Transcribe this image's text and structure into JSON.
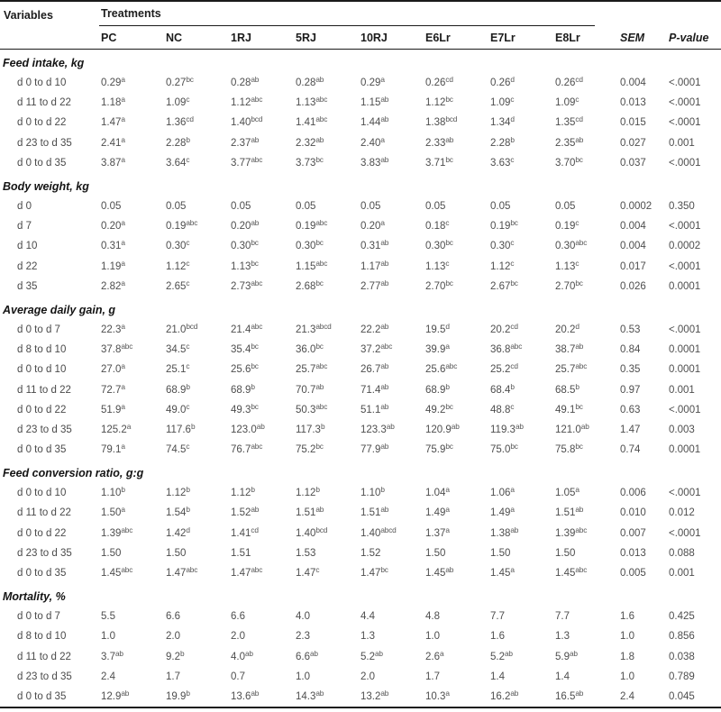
{
  "table": {
    "variables_label": "Variables",
    "treatments_label": "Treatments",
    "columns": [
      "PC",
      "NC",
      "1RJ",
      "5RJ",
      "10RJ",
      "E6Lr",
      "E7Lr",
      "E8Lr",
      "SEM",
      "P-value"
    ],
    "italic_columns": [
      "SEM",
      "P-value"
    ],
    "sections": [
      {
        "title": "Feed intake, kg",
        "rows": [
          {
            "label": "d 0 to d 10",
            "values": [
              "0.29^a",
              "0.27^bc",
              "0.28^ab",
              "0.28^ab",
              "0.29^a",
              "0.26^cd",
              "0.26^d",
              "0.26^cd",
              "0.004",
              "<.0001"
            ]
          },
          {
            "label": "d 11 to d 22",
            "values": [
              "1.18^a",
              "1.09^c",
              "1.12^abc",
              "1.13^abc",
              "1.15^ab",
              "1.12^bc",
              "1.09^c",
              "1.09^c",
              "0.013",
              "<.0001"
            ]
          },
          {
            "label": "d 0 to d 22",
            "values": [
              "1.47^a",
              "1.36^cd",
              "1.40^bcd",
              "1.41^abc",
              "1.44^ab",
              "1.38^bcd",
              "1.34^d",
              "1.35^cd",
              "0.015",
              "<.0001"
            ]
          },
          {
            "label": "d 23 to d 35",
            "values": [
              "2.41^a",
              "2.28^b",
              "2.37^ab",
              "2.32^ab",
              "2.40^a",
              "2.33^ab",
              "2.28^b",
              "2.35^ab",
              "0.027",
              "0.001"
            ]
          },
          {
            "label": "d 0 to d 35",
            "values": [
              "3.87^a",
              "3.64^c",
              "3.77^abc",
              "3.73^bc",
              "3.83^ab",
              "3.71^bc",
              "3.63^c",
              "3.70^bc",
              "0.037",
              "<.0001"
            ]
          }
        ]
      },
      {
        "title": "Body weight, kg",
        "rows": [
          {
            "label": "d 0",
            "values": [
              "0.05",
              "0.05",
              "0.05",
              "0.05",
              "0.05",
              "0.05",
              "0.05",
              "0.05",
              "0.0002",
              "0.350"
            ]
          },
          {
            "label": "d 7",
            "values": [
              "0.20^a",
              "0.19^abc",
              "0.20^ab",
              "0.19^abc",
              "0.20^a",
              "0.18^c",
              "0.19^bc",
              "0.19^c",
              "0.004",
              "<.0001"
            ]
          },
          {
            "label": "d 10",
            "values": [
              "0.31^a",
              "0.30^c",
              "0.30^bc",
              "0.30^bc",
              "0.31^ab",
              "0.30^bc",
              "0.30^c",
              "0.30^abc",
              "0.004",
              "0.0002"
            ]
          },
          {
            "label": "d 22",
            "values": [
              "1.19^a",
              "1.12^c",
              "1.13^bc",
              "1.15^abc",
              "1.17^ab",
              "1.13^c",
              "1.12^c",
              "1.13^c",
              "0.017",
              "<.0001"
            ]
          },
          {
            "label": "d 35",
            "values": [
              "2.82^a",
              "2.65^c",
              "2.73^abc",
              "2.68^bc",
              "2.77^ab",
              "2.70^bc",
              "2.67^bc",
              "2.70^bc",
              "0.026",
              "0.0001"
            ]
          }
        ]
      },
      {
        "title": "Average daily gain, g",
        "rows": [
          {
            "label": "d 0 to d 7",
            "values": [
              "22.3^a",
              "21.0^bcd",
              "21.4^abc",
              "21.3^abcd",
              "22.2^ab",
              "19.5^d",
              "20.2^cd",
              "20.2^d",
              "0.53",
              "<.0001"
            ]
          },
          {
            "label": "d 8 to d 10",
            "values": [
              "37.8^abc",
              "34.5^c",
              "35.4^bc",
              "36.0^bc",
              "37.2^abc",
              "39.9^a",
              "36.8^abc",
              "38.7^ab",
              "0.84",
              "0.0001"
            ]
          },
          {
            "label": "d 0 to d 10",
            "values": [
              "27.0^a",
              "25.1^c",
              "25.6^bc",
              "25.7^abc",
              "26.7^ab",
              "25.6^abc",
              "25.2^cd",
              "25.7^abc",
              "0.35",
              "0.0001"
            ]
          },
          {
            "label": "d 11 to d 22",
            "values": [
              "72.7^a",
              "68.9^b",
              "68.9^b",
              "70.7^ab",
              "71.4^ab",
              "68.9^b",
              "68.4^b",
              "68.5^b",
              "0.97",
              "0.001"
            ]
          },
          {
            "label": "d 0 to d 22",
            "values": [
              "51.9^a",
              "49.0^c",
              "49.3^bc",
              "50.3^abc",
              "51.1^ab",
              "49.2^bc",
              "48.8^c",
              "49.1^bc",
              "0.63",
              "<.0001"
            ]
          },
          {
            "label": "d 23 to d 35",
            "values": [
              "125.2^a",
              "117.6^b",
              "123.0^ab",
              "117.3^b",
              "123.3^ab",
              "120.9^ab",
              "119.3^ab",
              "121.0^ab",
              "1.47",
              "0.003"
            ]
          },
          {
            "label": "d 0 to d 35",
            "values": [
              "79.1^a",
              "74.5^c",
              "76.7^abc",
              "75.2^bc",
              "77.9^ab",
              "75.9^bc",
              "75.0^bc",
              "75.8^bc",
              "0.74",
              "0.0001"
            ]
          }
        ]
      },
      {
        "title": "Feed conversion ratio, g:g",
        "rows": [
          {
            "label": "d 0 to d 10",
            "values": [
              "1.10^b",
              "1.12^b",
              "1.12^b",
              "1.12^b",
              "1.10^b",
              "1.04^a",
              "1.06^a",
              "1.05^a",
              "0.006",
              "<.0001"
            ]
          },
          {
            "label": "d 11 to d 22",
            "values": [
              "1.50^a",
              "1.54^b",
              "1.52^ab",
              "1.51^ab",
              "1.51^ab",
              "1.49^a",
              "1.49^a",
              "1.51^ab",
              "0.010",
              "0.012"
            ]
          },
          {
            "label": "d 0 to d 22",
            "values": [
              "1.39^abc",
              "1.42^d",
              "1.41^cd",
              "1.40^bcd",
              "1.40^abcd",
              "1.37^a",
              "1.38^ab",
              "1.39^abc",
              "0.007",
              "<.0001"
            ]
          },
          {
            "label": "d 23 to d 35",
            "values": [
              "1.50",
              "1.50",
              "1.51",
              "1.53",
              "1.52",
              "1.50",
              "1.50",
              "1.50",
              "0.013",
              "0.088"
            ]
          },
          {
            "label": "d 0 to d 35",
            "values": [
              "1.45^abc",
              "1.47^abc",
              "1.47^abc",
              "1.47^c",
              "1.47^bc",
              "1.45^ab",
              "1.45^a",
              "1.45^abc",
              "0.005",
              "0.001"
            ]
          }
        ]
      },
      {
        "title": "Mortality, %",
        "rows": [
          {
            "label": "d 0 to d 7",
            "values": [
              "5.5",
              "6.6",
              "6.6",
              "4.0",
              "4.4",
              "4.8",
              "7.7",
              "7.7",
              "1.6",
              "0.425"
            ]
          },
          {
            "label": "d 8 to d 10",
            "values": [
              "1.0",
              "2.0",
              "2.0",
              "2.3",
              "1.3",
              "1.0",
              "1.6",
              "1.3",
              "1.0",
              "0.856"
            ]
          },
          {
            "label": "d 11 to d 22",
            "values": [
              "3.7^ab",
              "9.2^b",
              "4.0^ab",
              "6.6^ab",
              "5.2^ab",
              "2.6^a",
              "5.2^ab",
              "5.9^ab",
              "1.8",
              "0.038"
            ]
          },
          {
            "label": "d 23 to d 35",
            "values": [
              "2.4",
              "1.7",
              "0.7",
              "1.0",
              "2.0",
              "1.7",
              "1.4",
              "1.4",
              "1.0",
              "0.789"
            ]
          },
          {
            "label": "d 0 to d 35",
            "values": [
              "12.9^ab",
              "19.9^b",
              "13.6^ab",
              "14.3^ab",
              "13.2^ab",
              "10.3^a",
              "16.2^ab",
              "16.5^ab",
              "2.4",
              "0.045"
            ]
          }
        ]
      }
    ]
  },
  "colors": {
    "rule": "#1a1a1a",
    "header_text": "#1c1c1c",
    "data_text": "#4e4e4e",
    "background": "#ffffff"
  }
}
